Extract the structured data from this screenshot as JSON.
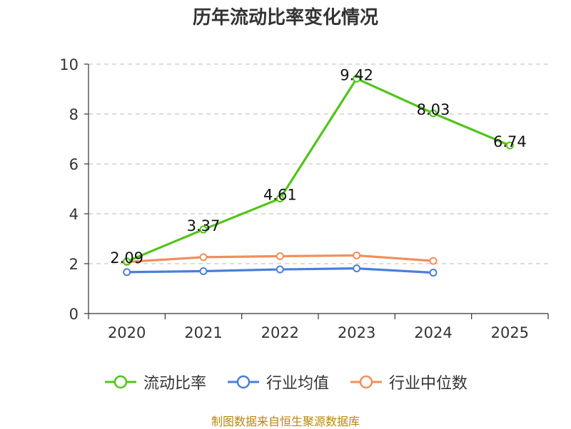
{
  "chart_data": {
    "type": "line",
    "title": "历年流动比率变化情况",
    "categories": [
      "2020",
      "2021",
      "2022",
      "2023",
      "2024",
      "2025"
    ],
    "yticks": [
      "0",
      "2",
      "4",
      "6",
      "8",
      "10"
    ],
    "ylim": [
      0,
      10
    ],
    "grid": "horizontal-dashed",
    "legend_position": "bottom",
    "series": [
      {
        "name": "流动比率",
        "color": "#52c41a",
        "values": [
          2.09,
          3.37,
          4.61,
          9.42,
          8.03,
          6.74
        ],
        "data_labels": [
          "2.09",
          "3.37",
          "4.61",
          "9.42",
          "8.03",
          "6.74"
        ]
      },
      {
        "name": "行业均值",
        "color": "#4a7fd8",
        "values": [
          1.66,
          1.7,
          1.77,
          1.81,
          1.64,
          null
        ]
      },
      {
        "name": "行业中位数",
        "color": "#f28e5b",
        "values": [
          2.07,
          2.26,
          2.3,
          2.33,
          2.11,
          null
        ]
      }
    ]
  },
  "source_text": "制图数据来自恒生聚源数据库"
}
